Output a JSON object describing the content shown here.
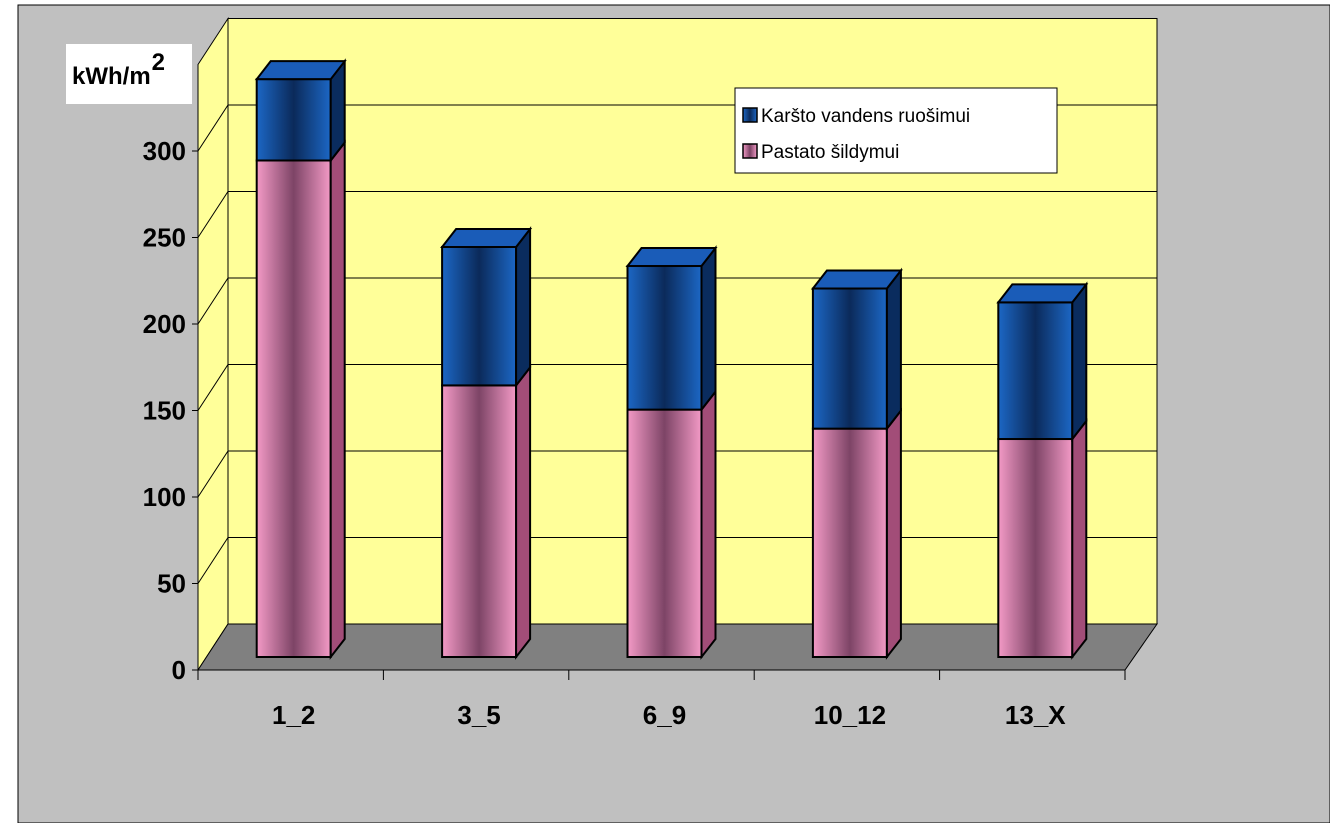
{
  "chart_data": {
    "type": "bar",
    "stacked": true,
    "three_d": true,
    "y_unit_label": "kWh/m",
    "y_unit_superscript": "2",
    "categories": [
      "1_2",
      "3_5",
      "6_9",
      "10_12",
      "13_X"
    ],
    "series": [
      {
        "name": "Pastato šildymui",
        "values": [
          287,
          157,
          143,
          132,
          126
        ],
        "color": "#f28fbf"
      },
      {
        "name": "Karšto vandens ruošimui",
        "values": [
          47,
          80,
          83,
          81,
          79
        ],
        "color": "#1f5fb0"
      }
    ],
    "legend_order": [
      "Karšto vandens ruošimui",
      "Pastato šildymui"
    ],
    "yticks": [
      0,
      50,
      100,
      150,
      200,
      250,
      300
    ],
    "ylim": [
      0,
      350
    ],
    "grid": true,
    "legend_position": "top-right",
    "colors": {
      "background": "#c0c0c0",
      "wall": "#ffff99",
      "floor": "#808080"
    }
  }
}
